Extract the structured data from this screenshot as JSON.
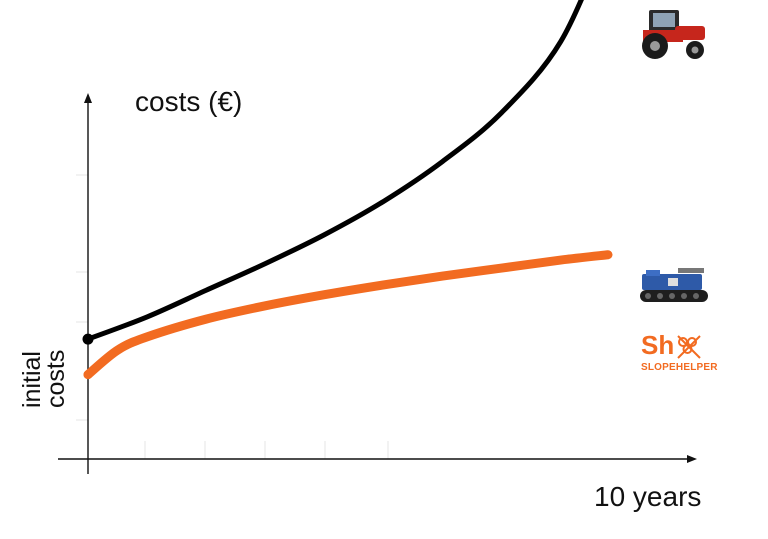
{
  "chart_data": {
    "type": "line",
    "ylabel": "costs (€)",
    "xlabel": "10 years",
    "side_label": [
      "initial",
      "costs"
    ],
    "xlim": [
      0,
      10
    ],
    "ylim": [
      0,
      10
    ],
    "series": [
      {
        "color": "#000000",
        "icon": "tractor-icon",
        "x": [
          0,
          1,
          2,
          3,
          4,
          5,
          6,
          7,
          8,
          8.8
        ],
        "y": [
          2.7,
          3.2,
          3.8,
          4.4,
          5.05,
          5.8,
          6.7,
          7.8,
          9.4,
          11.8
        ]
      },
      {
        "color": "#f26b21",
        "icon": "tracked-vehicle-icon",
        "x": [
          0,
          0.5,
          1,
          2,
          3,
          4,
          5,
          6,
          7,
          8,
          8.8
        ],
        "y": [
          1.9,
          2.45,
          2.75,
          3.15,
          3.45,
          3.7,
          3.92,
          4.12,
          4.3,
          4.48,
          4.6
        ]
      }
    ]
  },
  "logo": {
    "text": "Sh",
    "subtitle": "SLOPEHELPER"
  }
}
